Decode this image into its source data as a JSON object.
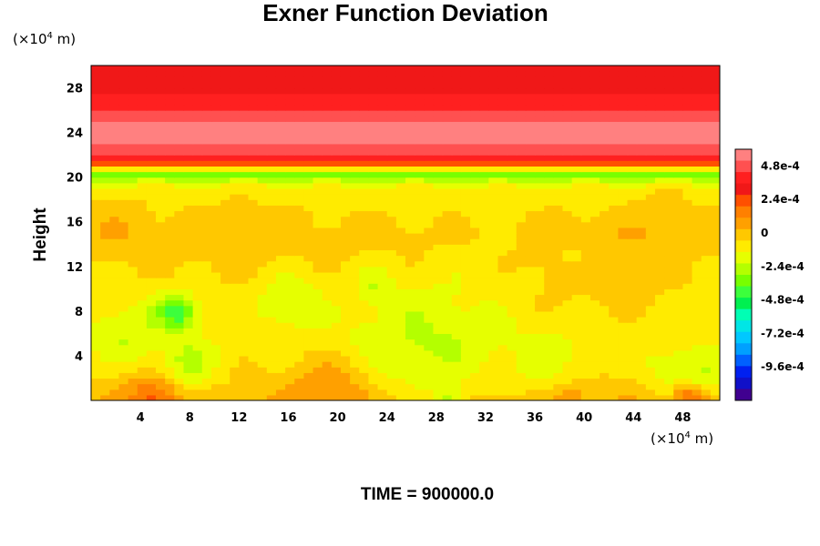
{
  "chart_data": {
    "type": "heatmap",
    "title": "Exner Function Deviation",
    "ylabel": "Height",
    "xlabel": "",
    "x_unit_prefix": "(×10",
    "x_unit_exp": "4",
    "x_unit_suffix": " m)",
    "y_unit_prefix": "(×10",
    "y_unit_exp": "4",
    "y_unit_suffix": " m)",
    "footer": "TIME = 900000.0",
    "xlim": [
      0,
      51
    ],
    "ylim": [
      0,
      30
    ],
    "x_ticks": [
      "4",
      "8",
      "12",
      "16",
      "20",
      "24",
      "28",
      "32",
      "36",
      "40",
      "44",
      "48"
    ],
    "x_tick_values": [
      4,
      8,
      12,
      16,
      20,
      24,
      28,
      32,
      36,
      40,
      44,
      48
    ],
    "y_ticks": [
      "4",
      "8",
      "12",
      "16",
      "20",
      "24",
      "28"
    ],
    "y_tick_values": [
      4,
      8,
      12,
      16,
      20,
      24,
      28
    ],
    "colorbar": {
      "range": [
        -0.0012,
        0.0006
      ],
      "levels": 22,
      "tick_labels": [
        "4.8e-4",
        "2.4e-4",
        "0",
        "-2.4e-4",
        "-4.8e-4",
        "-7.2e-4",
        "-9.6e-4"
      ],
      "tick_values": [
        0.00048,
        0.00024,
        0,
        -0.00024,
        -0.00048,
        -0.00072,
        -0.00096
      ],
      "colors_top_to_bottom": [
        "#ff8080",
        "#ff5050",
        "#ff2020",
        "#f01818",
        "#ff5000",
        "#ff8000",
        "#ffa000",
        "#ffc800",
        "#ffeb00",
        "#e6ff00",
        "#b4ff00",
        "#78ff00",
        "#3cff3c",
        "#00f050",
        "#00ffb4",
        "#00e6e6",
        "#00c8ff",
        "#00a0ff",
        "#0060ff",
        "#0020f0",
        "#1010c8",
        "#400090"
      ]
    },
    "height_profile": [
      {
        "y": 0,
        "value": 2e-05
      },
      {
        "y": 2,
        "value": -4e-05
      },
      {
        "y": 5,
        "value": -0.0001
      },
      {
        "y": 10,
        "value": -8e-05
      },
      {
        "y": 15,
        "value": -2e-05
      },
      {
        "y": 19,
        "value": -0.0001
      },
      {
        "y": 20.4,
        "value": -0.00036
      },
      {
        "y": 21.0,
        "value": 0.00012
      },
      {
        "y": 21.8,
        "value": 0.0004
      },
      {
        "y": 23,
        "value": 0.00052
      },
      {
        "y": 25,
        "value": 0.00052
      },
      {
        "y": 26.5,
        "value": 0.0004
      },
      {
        "y": 28,
        "value": 0.00032
      },
      {
        "y": 30,
        "value": 0.00028
      }
    ]
  }
}
